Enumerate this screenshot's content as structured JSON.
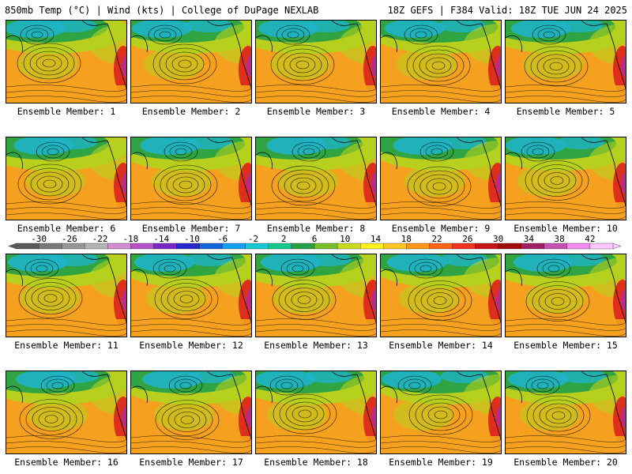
{
  "header": {
    "left": "850mb Temp (°C) | Wind (kts) | College of DuPage NEXLAB",
    "right": "18Z GEFS | F384 Valid: 18Z TUE JUN 24 2025"
  },
  "caption_prefix": "Ensemble Member: ",
  "members": [
    "1",
    "2",
    "3",
    "4",
    "5",
    "6",
    "7",
    "8",
    "9",
    "10",
    "11",
    "12",
    "13",
    "14",
    "15",
    "16",
    "17",
    "18",
    "19",
    "20"
  ],
  "colorbar": {
    "ticks": [
      "-30",
      "-26",
      "-22",
      "-18",
      "-14",
      "-10",
      "-6",
      "-2",
      "2",
      "6",
      "10",
      "14",
      "18",
      "22",
      "26",
      "30",
      "34",
      "38",
      "42"
    ],
    "colors": [
      "#5a5a5a",
      "#787878",
      "#969696",
      "#b4b4b4",
      "#d28cd2",
      "#b450c8",
      "#7828c8",
      "#2828c8",
      "#1464dc",
      "#14a0f0",
      "#14c8d2",
      "#14c88c",
      "#28a046",
      "#78be28",
      "#c8dc1e",
      "#fff01e",
      "#ffc81e",
      "#ff9614",
      "#ff6414",
      "#f0321e",
      "#c81414",
      "#a00a0a",
      "#a01e64",
      "#c850b4",
      "#f08cf0",
      "#ffc8ff"
    ]
  },
  "colors": {
    "cold": "#1eb4c8",
    "cool": "#28a046",
    "mild": "#b4d21e",
    "warm": "#f5a01e",
    "hot": "#dc281e",
    "extreme": "#b428a0"
  }
}
